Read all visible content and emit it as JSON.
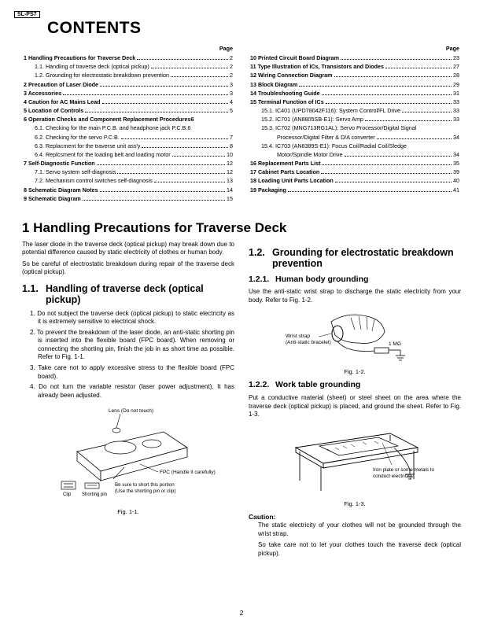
{
  "model": "SL-PS7",
  "contents_heading": "CONTENTS",
  "page_label": "Page",
  "toc_left": [
    {
      "label": "1 Handling Precautions for Traverse Deck",
      "page": "2",
      "bold": true
    },
    {
      "label": "1.1. Handling of traverse deck (optical pickup)",
      "page": "2",
      "sub": true
    },
    {
      "label": "1.2. Grounding for electrostatic breakdown prevention",
      "page": "2",
      "sub": true
    },
    {
      "label": "2 Precaution of Laser Diode",
      "page": "3",
      "bold": true
    },
    {
      "label": "3 Accessories",
      "page": "3",
      "bold": true
    },
    {
      "label": "4 Caution for AC Mains Lead",
      "page": "4",
      "bold": true
    },
    {
      "label": "5 Location of Controls",
      "page": "5",
      "bold": true
    },
    {
      "label": "6 Operation Checks and Component Replacement Procedures6",
      "page": "",
      "bold": true
    },
    {
      "label": "6.1. Checking for the main P.C.B. and headphone jack P.C.B.6",
      "page": "",
      "sub": true
    },
    {
      "label": "6.2. Checking for the servo P.C.B.",
      "page": "7",
      "sub": true
    },
    {
      "label": "6.3. Replacment for the traverse unit ass'y",
      "page": "8",
      "sub": true
    },
    {
      "label": "6.4. Replcsment for the loading belt and loading motor",
      "page": "10",
      "sub": true
    },
    {
      "label": "7 Self-Diagnostic Function",
      "page": "12",
      "bold": true
    },
    {
      "label": "7.1. Servo system self-diagnosis",
      "page": "12",
      "sub": true
    },
    {
      "label": "7.2. Mechanism control switches self-diagnosis",
      "page": "13",
      "sub": true
    },
    {
      "label": "8 Schematic Diagram Notes",
      "page": "14",
      "bold": true
    },
    {
      "label": "9 Schematic Diagram",
      "page": "15",
      "bold": true
    }
  ],
  "toc_right": [
    {
      "label": "10 Printed Circuit Board Diagram",
      "page": "23",
      "bold": true
    },
    {
      "label": "11 Type Illustration of ICs, Transistors and Diodes",
      "page": "27",
      "bold": true
    },
    {
      "label": "12 Wiring Connection Diagram",
      "page": "28",
      "bold": true
    },
    {
      "label": "13 Block Diagram",
      "page": "29",
      "bold": true
    },
    {
      "label": "14 Troubleshooting Guide",
      "page": "31",
      "bold": true
    },
    {
      "label": "15 Terminal Function of ICs",
      "page": "33",
      "bold": true
    },
    {
      "label": "15.1. IC401 (UPD78042F116): System Control/FL Drive",
      "page": "33",
      "sub": true
    },
    {
      "label": "15.2. IC701 (AN8805SB-E1): Servo Amp",
      "page": "33",
      "sub": true
    },
    {
      "label": "15.3. IC702 (MNG713RG1AL): Servo Processor/Digital Signal",
      "page": "",
      "sub": true
    },
    {
      "label": "Processor/Digital Filter & D/A converter",
      "page": "34",
      "sub": true,
      "extra_indent": true
    },
    {
      "label": "15.4. IC703 (AN8389S-E1): Focus Coil/Radial Coil/Sledge",
      "page": "",
      "sub": true
    },
    {
      "label": "Motor/Spindle Motor Drive",
      "page": "34",
      "sub": true,
      "extra_indent": true
    },
    {
      "label": "16 Replacement Parts List",
      "page": "35",
      "bold": true
    },
    {
      "label": "17 Cabinet Parts Location",
      "page": "39",
      "bold": true
    },
    {
      "label": "18 Loading Unit Parts Location",
      "page": "40",
      "bold": true
    },
    {
      "label": "19 Packaging",
      "page": "41",
      "bold": true
    }
  ],
  "section1_title": "1   Handling Precautions for Traverse Deck",
  "intro_p1": "The laser diode in the traverse deck (optical pickup) may break down due to potential difference caused by static electricity of clothes or human body.",
  "intro_p2": "So be careful of electrostatic breakdown during repair of the traverse deck (optical pickup).",
  "h11_num": "1.1.",
  "h11_txt": "Handling of traverse deck (optical pickup)",
  "steps_11": [
    "1. Do not subject the traverse deck (optical pickup) to static electricity as it is extremely sensitive to electrical shock.",
    "2. To prevent the breakdown of the laser diode, an anti-static shorting pin is inserted into the flexible board (FPC board). When removing or connecting the shorting pin, finish the job in as short time as possible. Refer to Fig. 1-1.",
    "3. Take care not to apply excessive stress to the flexible board (FPC board).",
    "4. Do not turn the variable resistor (laser power adjustment). It has already been adjusted."
  ],
  "fig11_lens": "Lens (Do not touch)",
  "fig11_fpc": "FPC (Handle it carefully)",
  "fig11_clip": "Clip",
  "fig11_short": "Shorting pin",
  "fig11_note1": "Be sure to short this portion",
  "fig11_note2": "(Use the shorting pin or clip)",
  "fig11_cap": "Fig. 1-1.",
  "h12_num": "1.2.",
  "h12_txt": "Grounding for electrostatic breakdown prevention",
  "h121_num": "1.2.1.",
  "h121_txt": "Human body grounding",
  "p121": "Use the anti-static wrist strap to discharge the static electricity from your body. Refer to Fig. 1-2.",
  "fig12_wrist": "Wrist strap",
  "fig12_brac": "(Anti-static bracelet)",
  "fig12_ohm": "1 MΩ",
  "fig12_cap": "Fig. 1-2.",
  "h122_num": "1.2.2.",
  "h122_txt": "Work table grounding",
  "p122": "Put a conductive material (sheet) or steel sheet on the area where the traverse deck (optical pickup) is placed, and ground the sheet. Refer to Fig. 1-3.",
  "fig13_note1": "Iron plate or some metals to",
  "fig13_note2": "conduct electricity",
  "fig13_cap": "Fig. 1-3.",
  "caution_hdr": "Caution:",
  "caution_p1": "The static electricity of your clothes will not be grounded through the wrist strap.",
  "caution_p2": "So take care not to let your clothes touch the traverse deck (optical pickup).",
  "page_number": "2",
  "colors": {
    "text": "#000000",
    "bg": "#ffffff"
  }
}
